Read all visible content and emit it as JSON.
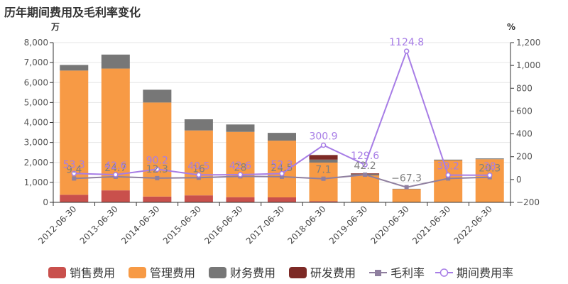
{
  "title": "历年期间费用及毛利率变化",
  "chart_data": {
    "type": "bar",
    "title": "历年期间费用及毛利率变化",
    "left_unit": "万",
    "right_unit": "%",
    "ylim_left": [
      0,
      8000
    ],
    "ylim_right": [
      -200,
      1200
    ],
    "left_ticks": [
      "0",
      "1,000",
      "2,000",
      "3,000",
      "4,000",
      "5,000",
      "6,000",
      "7,000",
      "8,000"
    ],
    "right_ticks": [
      "−200",
      "0",
      "200",
      "400",
      "600",
      "800",
      "1,000",
      "1,200"
    ],
    "categories": [
      "2012-06-30",
      "2013-06-30",
      "2014-06-30",
      "2015-06-30",
      "2016-06-30",
      "2017-06-30",
      "2018-06-30",
      "2019-06-30",
      "2020-06-30",
      "2021-06-30",
      "2022-06-30"
    ],
    "series": [
      {
        "name": "销售费用",
        "type": "bar",
        "color": "#c9504c",
        "values": [
          380,
          600,
          290,
          350,
          260,
          250,
          60,
          20,
          10,
          20,
          10
        ]
      },
      {
        "name": "管理费用",
        "type": "bar",
        "color": "#f79a45",
        "values": [
          6220,
          6100,
          4710,
          3250,
          3270,
          2840,
          1930,
          1330,
          650,
          2080,
          2150
        ]
      },
      {
        "name": "财务费用",
        "type": "bar",
        "color": "#777777",
        "values": [
          280,
          700,
          640,
          560,
          370,
          390,
          150,
          60,
          20,
          40,
          40
        ]
      },
      {
        "name": "研发费用",
        "type": "bar",
        "color": "#7d2a26",
        "values": [
          0,
          0,
          0,
          0,
          0,
          0,
          230,
          40,
          0,
          0,
          0
        ]
      },
      {
        "name": "毛利率",
        "type": "line",
        "axis": "right",
        "color": "#8f7f9f",
        "values": [
          9.4,
          24.7,
          12.3,
          16,
          28,
          24.5,
          7.1,
          42.2,
          -67.3,
          9.3,
          20.3
        ],
        "labels": [
          "9.4",
          "24.7",
          "12.3",
          "16",
          "28",
          "24.5",
          "7.1",
          "42.2",
          "−67.3",
          "",
          "20.3"
        ]
      },
      {
        "name": "期间费用率",
        "type": "line",
        "axis": "right",
        "color": "#a77de6",
        "values": [
          53.3,
          42.6,
          90.2,
          40.5,
          42.6,
          52.3,
          300.9,
          129.6,
          1124.8,
          39.2,
          38
        ],
        "labels": [
          "53.3",
          "42.6",
          "90.2",
          "40.5",
          "42.6",
          "52.3",
          "300.9",
          "129.6",
          "1124.8",
          "39.2",
          "38"
        ]
      }
    ],
    "legend": {
      "position": "bottom"
    }
  }
}
